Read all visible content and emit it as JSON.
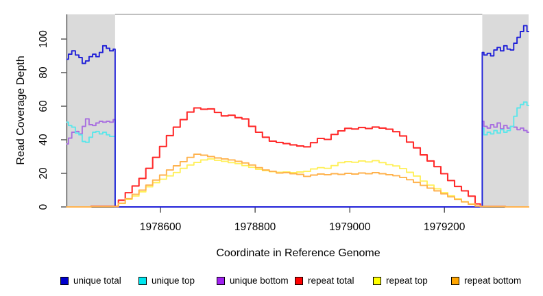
{
  "figure": {
    "background": "#ffffff",
    "band_color": "#dadada",
    "axis_color": "#2f2f2f",
    "top_border_color": "#9a9a9a"
  },
  "axes": {
    "xlabel": "Coordinate in Reference Genome",
    "ylabel": "Read Coverage Depth"
  },
  "chart_data": {
    "type": "line",
    "title": "",
    "xlabel": "Coordinate in Reference Genome",
    "ylabel": "Read Coverage Depth",
    "xlim": [
      1978402,
      1979378
    ],
    "ylim": [
      0,
      114.7
    ],
    "x_ticks": [
      1978600,
      1978800,
      1979000,
      1979200
    ],
    "y_ticks": [
      0,
      20,
      40,
      60,
      80,
      100
    ],
    "grid": false,
    "legend_position": "bottom",
    "shaded_regions": [
      {
        "start": 1978402,
        "end": 1978504,
        "color": "#dadada"
      },
      {
        "start": 1979280,
        "end": 1979378,
        "color": "#dadada"
      }
    ],
    "series": [
      {
        "name": "unique bottom",
        "color": "#a86ee0",
        "legend_color": "#a020f0",
        "x": [
          1978402,
          1978409,
          1978416,
          1978424,
          1978431,
          1978438,
          1978445,
          1978453,
          1978460,
          1978467,
          1978474,
          1978482,
          1978489,
          1978496,
          1978504,
          1978504,
          1979280,
          1979280,
          1979287,
          1979294,
          1979301,
          1979308,
          1979315,
          1979322,
          1979329,
          1979336,
          1979343,
          1979350,
          1979357,
          1979364,
          1979371,
          1979378
        ],
        "values": [
          37.5,
          41,
          44.5,
          45,
          43.5,
          48,
          52.5,
          49,
          48.5,
          50,
          51,
          50.5,
          51,
          50.5,
          52,
          0,
          0,
          51,
          48,
          47,
          49,
          47.5,
          50,
          46.5,
          48.5,
          47,
          48,
          47.5,
          46,
          47,
          45.5,
          44.5
        ]
      },
      {
        "name": "unique top",
        "color": "#5ce6ea",
        "legend_color": "#00e5ee",
        "x": [
          1978402,
          1978409,
          1978416,
          1978424,
          1978431,
          1978438,
          1978445,
          1978453,
          1978460,
          1978467,
          1978474,
          1978482,
          1978489,
          1978496,
          1978504,
          1978504,
          1979280,
          1979280,
          1979287,
          1979294,
          1979301,
          1979308,
          1979315,
          1979322,
          1979329,
          1979336,
          1979343,
          1979350,
          1979357,
          1979364,
          1979371,
          1979378
        ],
        "values": [
          50.5,
          48.5,
          47.5,
          44,
          43,
          39,
          38.5,
          41.5,
          44.5,
          45,
          43.5,
          44.5,
          43,
          42,
          42,
          0,
          0,
          47,
          43,
          44.5,
          43.5,
          45.5,
          44,
          46,
          44.5,
          45.5,
          48,
          54,
          59,
          61,
          62.5,
          60.5
        ]
      },
      {
        "name": "unique total",
        "color": "#2020d8",
        "legend_color": "#0000cd",
        "x": [
          1978402,
          1978409,
          1978416,
          1978424,
          1978431,
          1978438,
          1978445,
          1978453,
          1978460,
          1978467,
          1978474,
          1978482,
          1978489,
          1978496,
          1978504,
          1978504,
          1979280,
          1979280,
          1979287,
          1979294,
          1979301,
          1979308,
          1979315,
          1979322,
          1979329,
          1979336,
          1979343,
          1979350,
          1979357,
          1979364,
          1979371,
          1979378
        ],
        "values": [
          88,
          91,
          93,
          90.5,
          89,
          85.5,
          87,
          89.5,
          91,
          89.5,
          92,
          96,
          94.5,
          93,
          94,
          0,
          0,
          92,
          90.5,
          91.5,
          90,
          93.5,
          95,
          93,
          96,
          94,
          93.5,
          97.5,
          101,
          104.5,
          108,
          104.5
        ]
      },
      {
        "name": "repeat total",
        "color": "#ff2c2c",
        "legend_color": "#ff0000",
        "x": [
          1978402,
          1978504,
          1978518,
          1978533,
          1978547,
          1978562,
          1978576,
          1978591,
          1978605,
          1978620,
          1978634,
          1978649,
          1978663,
          1978678,
          1978692,
          1978707,
          1978721,
          1978736,
          1978750,
          1978765,
          1978779,
          1978794,
          1978808,
          1978823,
          1978837,
          1978852,
          1978866,
          1978881,
          1978895,
          1978910,
          1978924,
          1978939,
          1978953,
          1978968,
          1978982,
          1978997,
          1979011,
          1979026,
          1979040,
          1979055,
          1979069,
          1979084,
          1979098,
          1979113,
          1979127,
          1979142,
          1979156,
          1979171,
          1979185,
          1979200,
          1979214,
          1979229,
          1979243,
          1979258,
          1979272,
          1979280,
          1979378
        ],
        "values": [
          0,
          0.4,
          4,
          8.5,
          12.5,
          17,
          23,
          29.5,
          36,
          42.5,
          47.5,
          52,
          56.5,
          59,
          58.2,
          58.4,
          56.3,
          54.2,
          54.6,
          53.2,
          52.4,
          48,
          44.5,
          41.5,
          39.2,
          38.4,
          37.7,
          37,
          36.3,
          35.8,
          38.3,
          40.8,
          40.2,
          43.2,
          45.3,
          46.8,
          46.4,
          47.3,
          46.7,
          47.6,
          47,
          46.3,
          44.8,
          42.3,
          38.6,
          35.2,
          31,
          27.4,
          24,
          19.8,
          15.7,
          12.2,
          9.6,
          6.4,
          1.8,
          0.3,
          0
        ]
      },
      {
        "name": "repeat top",
        "color": "#fff05a",
        "legend_color": "#ffff00",
        "x": [
          1978402,
          1978504,
          1978518,
          1978533,
          1978547,
          1978562,
          1978576,
          1978591,
          1978605,
          1978620,
          1978634,
          1978649,
          1978663,
          1978678,
          1978692,
          1978707,
          1978721,
          1978736,
          1978750,
          1978765,
          1978779,
          1978794,
          1978808,
          1978823,
          1978837,
          1978852,
          1978866,
          1978881,
          1978895,
          1978910,
          1978924,
          1978939,
          1978953,
          1978968,
          1978982,
          1978997,
          1979011,
          1979026,
          1979040,
          1979055,
          1979069,
          1979084,
          1979098,
          1979113,
          1979127,
          1979142,
          1979156,
          1979171,
          1979185,
          1979200,
          1979214,
          1979229,
          1979243,
          1979258,
          1979272,
          1979280,
          1979378
        ],
        "values": [
          0,
          0.2,
          2,
          4.5,
          6.5,
          9,
          12,
          14.5,
          16.5,
          18.5,
          20.5,
          23,
          25,
          26.5,
          28,
          28.6,
          27.8,
          27.2,
          26.4,
          25.8,
          24.6,
          23.6,
          22.4,
          21.6,
          21,
          20.6,
          20.8,
          20.4,
          20.8,
          21.2,
          22.6,
          23.4,
          23,
          24.6,
          26.4,
          27,
          26.6,
          27.4,
          26.8,
          27.6,
          26.4,
          25.2,
          24.4,
          22.8,
          20.6,
          18.4,
          15.4,
          13,
          10.8,
          8.6,
          6.6,
          4.8,
          3.2,
          1.8,
          0.6,
          0.2,
          0
        ]
      },
      {
        "name": "repeat bottom",
        "color": "#ffb24d",
        "legend_color": "#ffa500",
        "x": [
          1978402,
          1978504,
          1978518,
          1978533,
          1978547,
          1978562,
          1978576,
          1978591,
          1978605,
          1978620,
          1978634,
          1978649,
          1978663,
          1978678,
          1978692,
          1978707,
          1978721,
          1978736,
          1978750,
          1978765,
          1978779,
          1978794,
          1978808,
          1978823,
          1978837,
          1978852,
          1978866,
          1978881,
          1978895,
          1978910,
          1978924,
          1978939,
          1978953,
          1978968,
          1978982,
          1978997,
          1979011,
          1979026,
          1979040,
          1979055,
          1979069,
          1979084,
          1979098,
          1979113,
          1979127,
          1979142,
          1979156,
          1979171,
          1979185,
          1979200,
          1979214,
          1979229,
          1979243,
          1979258,
          1979272,
          1979280,
          1979378
        ],
        "values": [
          0,
          0.2,
          2.2,
          5,
          7.5,
          10,
          13,
          16,
          19,
          22,
          24.5,
          27,
          29.5,
          31.4,
          30.8,
          30,
          29.2,
          28.6,
          28,
          27.2,
          26.2,
          25,
          23.4,
          22,
          21.2,
          20.2,
          20.4,
          19.8,
          19.4,
          18.2,
          19,
          19.6,
          19.2,
          19.8,
          19.4,
          20,
          19.6,
          20.2,
          19.8,
          20.4,
          19.8,
          19.2,
          18.6,
          17.6,
          16.2,
          14.6,
          12.8,
          11.2,
          9.6,
          7.8,
          6,
          4.4,
          3,
          1.6,
          0.5,
          0.2,
          0
        ]
      }
    ]
  }
}
